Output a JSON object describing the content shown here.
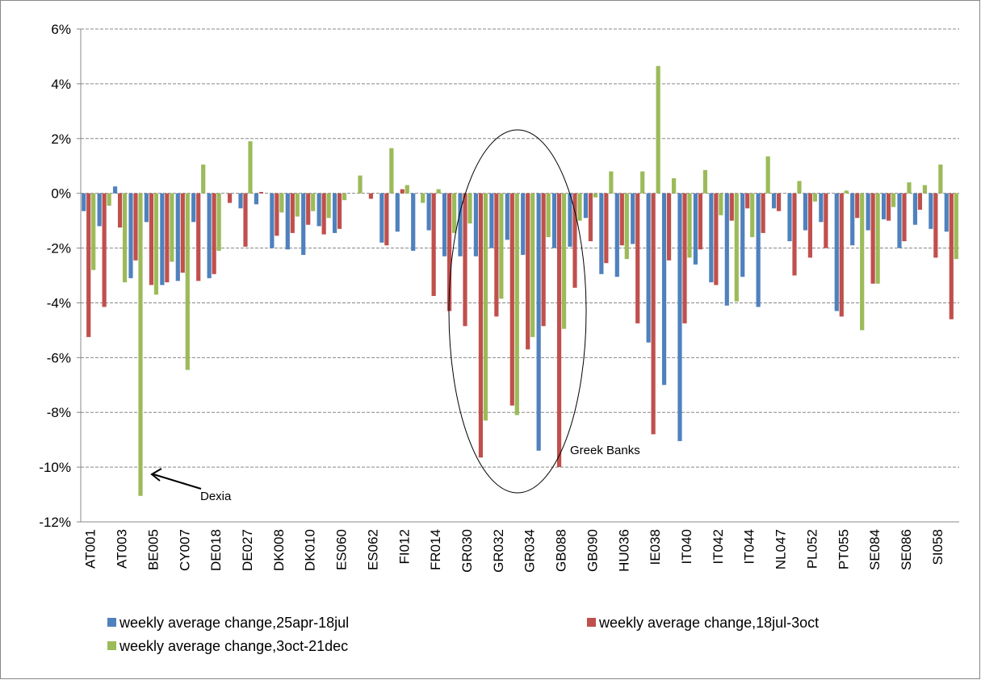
{
  "chart_data": {
    "type": "bar",
    "categories": [
      "AT001",
      null,
      "AT003",
      null,
      "BE005",
      null,
      "CY007",
      null,
      "DE018",
      null,
      "DE027",
      null,
      "DK008",
      null,
      "DK010",
      null,
      "ES060",
      null,
      "ES062",
      null,
      "FI012",
      null,
      "FR014",
      null,
      "GR030",
      null,
      "GR032",
      null,
      "GR034",
      null,
      "GB088",
      null,
      "GB090",
      null,
      "HU036",
      null,
      "IE038",
      null,
      "IT040",
      null,
      "IT042",
      null,
      "IT044",
      null,
      "NL047",
      null,
      "PL052",
      null,
      "PT055",
      null,
      "SE084",
      null,
      "SE086",
      null,
      "SI058",
      null
    ],
    "series": [
      {
        "name": "weekly average change,25apr-18jul",
        "color": "#4f81bd",
        "values": [
          -0.65,
          -1.2,
          0.25,
          -3.1,
          -1.05,
          -3.35,
          -3.2,
          -1.05,
          -3.1,
          null,
          -0.55,
          -0.4,
          -2.0,
          -2.05,
          -2.25,
          -1.2,
          -1.45,
          null,
          null,
          -1.8,
          -1.4,
          -2.1,
          -1.35,
          -2.3,
          -2.3,
          -2.3,
          -2.0,
          -1.7,
          -2.25,
          -9.4,
          -2.0,
          -1.95,
          -0.9,
          -2.95,
          -3.05,
          -1.85,
          -5.45,
          -7.0,
          -9.05,
          -2.6,
          -3.25,
          -4.1,
          -3.05,
          -4.15,
          -0.55,
          -1.75,
          -1.35,
          -1.05,
          -4.3,
          -1.9,
          -1.35,
          -0.95,
          -2.0,
          -1.15,
          -1.3,
          -1.4
        ]
      },
      {
        "name": "weekly average change,18jul-3oct",
        "color": "#c0504d",
        "values": [
          -5.25,
          -4.15,
          -1.25,
          -2.45,
          -3.35,
          -3.25,
          -2.9,
          -3.2,
          -2.95,
          -0.35,
          -1.95,
          0.05,
          -1.55,
          -1.45,
          -1.15,
          -1.5,
          -1.3,
          null,
          -0.2,
          -1.9,
          0.15,
          null,
          -3.75,
          -4.3,
          -4.85,
          -9.65,
          -4.5,
          -7.75,
          -5.7,
          -4.85,
          -10.0,
          -3.45,
          -1.75,
          -2.55,
          -1.9,
          -4.75,
          -8.8,
          -2.45,
          -4.75,
          -2.05,
          -3.35,
          -1.0,
          -0.55,
          -1.45,
          -0.65,
          -3.0,
          -2.35,
          -2.0,
          -4.5,
          -0.9,
          -3.3,
          -1.0,
          -1.75,
          -0.6,
          -2.35,
          -4.6
        ]
      },
      {
        "name": "weekly average change,3oct-21dec",
        "color": "#9bbb59",
        "values": [
          -2.8,
          -0.45,
          -3.25,
          -11.05,
          -3.7,
          -2.5,
          -6.45,
          1.05,
          -2.1,
          null,
          1.9,
          null,
          -0.7,
          -0.85,
          -0.65,
          -0.9,
          -0.25,
          0.65,
          null,
          1.65,
          0.3,
          -0.35,
          0.15,
          -1.45,
          -1.1,
          -8.3,
          -3.85,
          -8.1,
          -5.25,
          -1.6,
          -4.95,
          -1.0,
          -0.15,
          0.8,
          -2.4,
          0.8,
          4.65,
          0.55,
          -2.35,
          0.85,
          -0.8,
          -3.95,
          -1.6,
          1.35,
          null,
          0.45,
          -0.3,
          null,
          0.1,
          -5.0,
          -3.3,
          -0.5,
          0.4,
          0.3,
          1.05,
          -2.4
        ]
      }
    ],
    "ylim": [
      -12,
      6
    ],
    "yticks": [
      {
        "value": -12,
        "label": "-12%"
      },
      {
        "value": -10,
        "label": "-10%"
      },
      {
        "value": -8,
        "label": "-8%"
      },
      {
        "value": -6,
        "label": "-6%"
      },
      {
        "value": -4,
        "label": "-4%"
      },
      {
        "value": -2,
        "label": "-2%"
      },
      {
        "value": 0,
        "label": "0%"
      },
      {
        "value": 2,
        "label": "2%"
      },
      {
        "value": 4,
        "label": "4%"
      },
      {
        "value": 6,
        "label": "6%"
      }
    ],
    "grid": true,
    "legend": "bottom",
    "annotations": [
      "Dexia",
      "Greek Banks"
    ]
  }
}
